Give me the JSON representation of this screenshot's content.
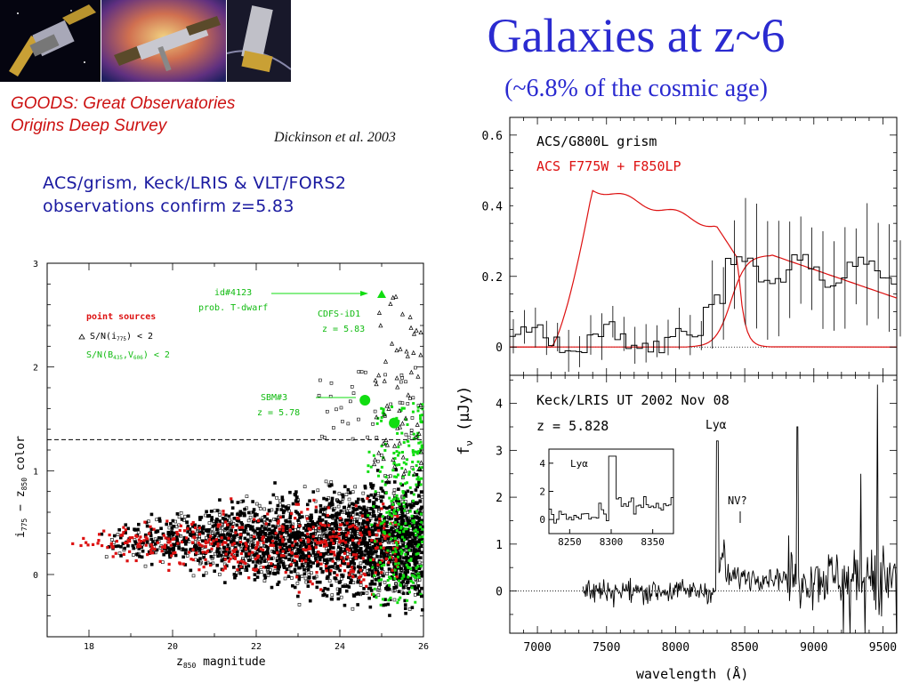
{
  "slide": {
    "title": "Galaxies at z~6",
    "subtitle": "(~6.8% of the cosmic age)",
    "goods_line1": "GOODS: Great Observatories",
    "goods_line2": "Origins Deep Survey",
    "citation": "Dickinson et al. 2003",
    "confirm_line1": "ACS/grism, Keck/LRIS & VLT/FORS2",
    "confirm_line2": "observations confirm z=5.83"
  },
  "colors": {
    "title": "#2a2ad0",
    "red": "#dd1111",
    "green": "#11dd11",
    "black": "#000000"
  },
  "chart_data": [
    {
      "type": "scatter",
      "name": "color-magnitude",
      "xlabel_main": "z",
      "xlabel_sub": "850",
      "xlabel_rest": " magnitude",
      "ylabel_main": "i",
      "ylabel_sub1": "775",
      "ylabel_mid": " − z",
      "ylabel_sub2": "850",
      "ylabel_rest": " color",
      "xlim": [
        17,
        26
      ],
      "ylim": [
        -0.6,
        3
      ],
      "xticks": [
        18,
        20,
        22,
        24,
        26
      ],
      "yticks": [
        0,
        1,
        2,
        3
      ],
      "threshold_y": 1.3,
      "legend": {
        "title": "point sources",
        "item1": "S/N(i",
        "item1_sub": "775",
        "item1_rest": ") < 2",
        "item2": "S/N(B",
        "item2_sub1": "435",
        "item2_mid": ",V",
        "item2_sub2": "606",
        "item2_rest": ") < 2"
      },
      "annotations": {
        "id4123_line1": "id#4123",
        "id4123_line2": "prob. T-dwarf",
        "cdfs_line1": "CDFS-iD1",
        "cdfs_line2": "z = 5.83",
        "sbm_line1": "SBM#3",
        "sbm_line2": "z = 5.78"
      },
      "highlighted": [
        {
          "label": "id#4123",
          "x": 25.0,
          "y": 2.7,
          "marker": "triangle"
        },
        {
          "label": "SBM#3",
          "x": 24.6,
          "y": 1.68,
          "marker": "circle"
        },
        {
          "label": "CDFS-iD1",
          "x": 25.3,
          "y": 1.46,
          "marker": "circle"
        }
      ]
    },
    {
      "type": "line",
      "name": "acs-grism-spectrum",
      "series": [
        {
          "name": "ACS/G800L grism"
        },
        {
          "name": "ACS F775W + F850LP"
        }
      ],
      "xlim": [
        6800,
        9600
      ],
      "ylim": [
        -0.08,
        0.65
      ],
      "yticks": [
        0,
        0.2,
        0.4,
        0.6
      ],
      "ytick_labels": [
        "0",
        "0.2",
        "0.4",
        "0.6"
      ]
    },
    {
      "type": "line",
      "name": "keck-lris-spectrum",
      "label_line1": "Keck/LRIS UT 2002 Nov 08",
      "label_line2": "z = 5.828",
      "lya_label": "Lyα",
      "nv_label": "NV?",
      "xlim": [
        6800,
        9600
      ],
      "ylim": [
        -0.9,
        4.6
      ],
      "xticks": [
        7000,
        7500,
        8000,
        8500,
        9000,
        9500
      ],
      "yticks": [
        0,
        1,
        2,
        3,
        4
      ],
      "xlabel": "wavelength (Å)",
      "ylabel": "f",
      "ylabel_sub": "ν",
      "ylabel_rest": " (μJy)",
      "inset": {
        "label": "Lyα",
        "xlim": [
          8225,
          8375
        ],
        "xticks": [
          8250,
          8300,
          8350
        ],
        "yticks": [
          0,
          2,
          4
        ]
      }
    }
  ]
}
